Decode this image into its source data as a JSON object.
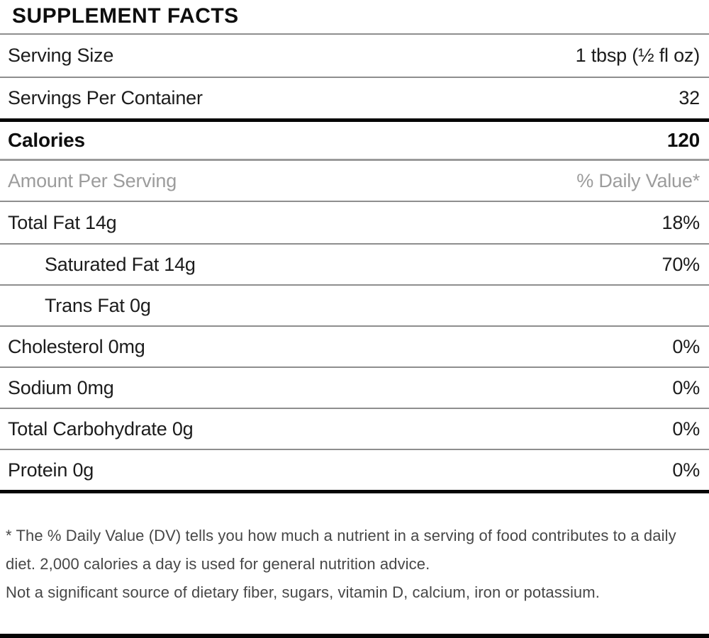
{
  "title": "SUPPLEMENT FACTS",
  "serving_rows": [
    {
      "label": "Serving Size",
      "value": "1 tbsp (½ fl oz)"
    },
    {
      "label": "Servings Per Container",
      "value": "32"
    }
  ],
  "calories": {
    "label": "Calories",
    "value": "120"
  },
  "column_header": {
    "label": "Amount Per Serving",
    "value": "% Daily Value*"
  },
  "nutrients": [
    {
      "label": "Total Fat 14g",
      "value": "18%",
      "indent": false
    },
    {
      "label": "Saturated Fat 14g",
      "value": "70%",
      "indent": true
    },
    {
      "label": "Trans Fat 0g",
      "value": "",
      "indent": true
    },
    {
      "label": "Cholesterol 0mg",
      "value": "0%",
      "indent": false
    },
    {
      "label": "Sodium 0mg",
      "value": "0%",
      "indent": false
    },
    {
      "label": "Total Carbohydrate 0g",
      "value": "0%",
      "indent": false
    },
    {
      "label": "Protein 0g",
      "value": "0%",
      "indent": false
    }
  ],
  "footnotes": [
    "* The % Daily Value (DV) tells you how much a nutrient in a serving of food contributes to a daily diet. 2,000 calories a day is used for general nutrition advice.",
    "Not a significant source of dietary fiber, sugars, vitamin D, calcium, iron or potassium."
  ],
  "colors": {
    "text": "#1c1c1c",
    "bold_text": "#0e0e0e",
    "muted_text": "#9c9c9c",
    "footnote_text": "#474747",
    "thin_rule": "#8e8e8e",
    "thick_rule": "#050505",
    "background": "#ffffff"
  }
}
